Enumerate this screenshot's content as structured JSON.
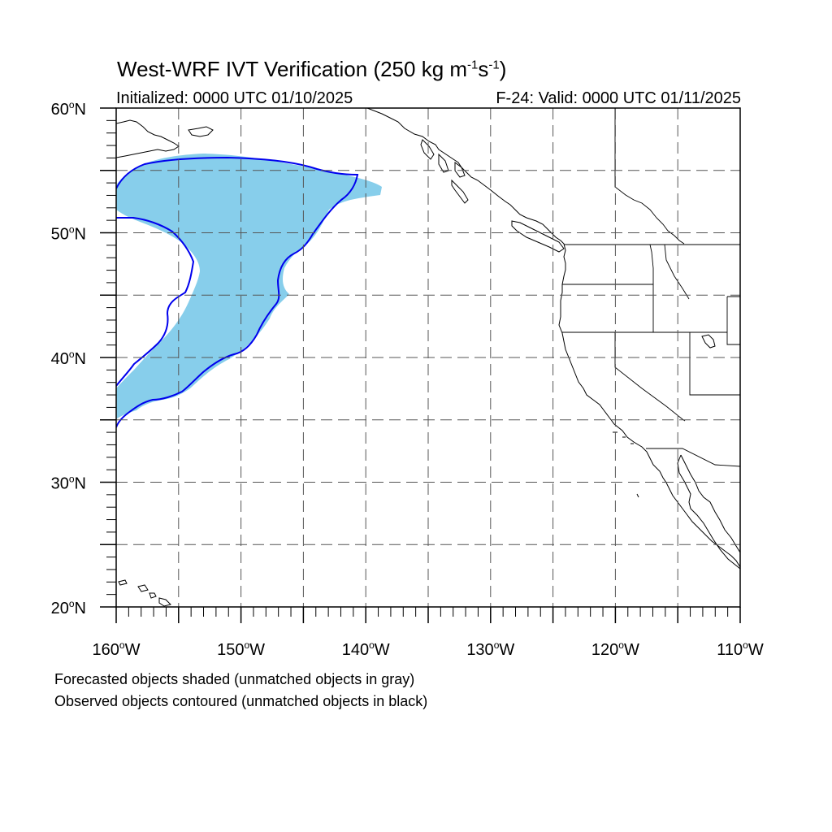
{
  "map": {
    "title": {
      "main": "West-WRF IVT Verification (250 kg m",
      "exp1": "-1",
      "mid": "s",
      "exp2": "-1",
      "end": ")"
    },
    "initialized": "Initialized: 0000 UTC 01/10/2025",
    "valid": "F-24: Valid: 0000 UTC 01/11/2025",
    "caption_forecast": "Forecasted objects shaded (unmatched objects in gray)",
    "caption_observed": "Observed objects contoured (unmatched objects in black)",
    "extent": {
      "lon_min": -160,
      "lon_max": -110,
      "lat_min": 20,
      "lat_max": 60
    },
    "lat_ticks": [
      {
        "value": 60,
        "label": "60",
        "suffix": "N"
      },
      {
        "value": 50,
        "label": "50",
        "suffix": "N"
      },
      {
        "value": 40,
        "label": "40",
        "suffix": "N"
      },
      {
        "value": 30,
        "label": "30",
        "suffix": "N"
      },
      {
        "value": 20,
        "label": "20",
        "suffix": "N"
      }
    ],
    "lon_ticks": [
      {
        "value": -160,
        "label": "160",
        "suffix": "W"
      },
      {
        "value": -150,
        "label": "150",
        "suffix": "W"
      },
      {
        "value": -140,
        "label": "140",
        "suffix": "W"
      },
      {
        "value": -130,
        "label": "130",
        "suffix": "W"
      },
      {
        "value": -120,
        "label": "120",
        "suffix": "W"
      },
      {
        "value": -110,
        "label": "110",
        "suffix": "W"
      }
    ],
    "colors": {
      "forecast_fill": "#87ceeb",
      "observed_contour": "#0000ee",
      "coastline": "#000000",
      "grid": "#555555"
    }
  }
}
